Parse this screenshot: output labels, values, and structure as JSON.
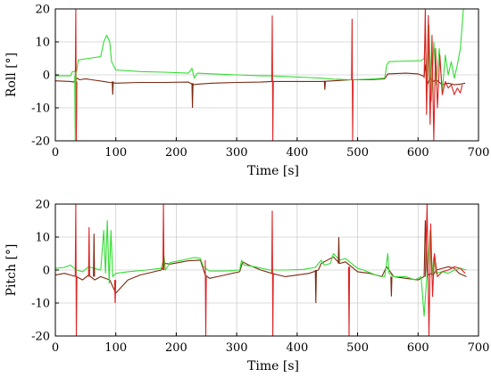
{
  "chart_data": [
    {
      "type": "line",
      "id": "roll",
      "xlabel": "Time [s]",
      "ylabel": "Roll [°]",
      "xlim": [
        0,
        700
      ],
      "ylim": [
        -20,
        20
      ],
      "xticks": [
        "0",
        "100",
        "200",
        "300",
        "400",
        "500",
        "600",
        "700"
      ],
      "yticks": [
        "20",
        "10",
        "0",
        "-10",
        "-20"
      ],
      "grid": true,
      "colors": {
        "green": "#33dd33",
        "dark": "#7a2a10",
        "red": "#dd2222"
      },
      "series": [
        {
          "color": "green",
          "points": [
            [
              0,
              -0.3
            ],
            [
              25,
              -0.3
            ],
            [
              28,
              1
            ],
            [
              35,
              1
            ],
            [
              38,
              4.5
            ],
            [
              55,
              5
            ],
            [
              75,
              5.5
            ],
            [
              80,
              10
            ],
            [
              85,
              12
            ],
            [
              90,
              10
            ],
            [
              93,
              4
            ],
            [
              100,
              1.5
            ],
            [
              140,
              1
            ],
            [
              180,
              0.8
            ],
            [
              220,
              0.5
            ],
            [
              226,
              2
            ],
            [
              230,
              -1
            ],
            [
              235,
              0.5
            ],
            [
              260,
              0.3
            ],
            [
              300,
              0
            ],
            [
              340,
              -0.3
            ],
            [
              355,
              -0.3
            ],
            [
              380,
              -0.5
            ],
            [
              420,
              -0.8
            ],
            [
              440,
              -1
            ],
            [
              460,
              -1.3
            ],
            [
              490,
              -1.5
            ],
            [
              520,
              -1.3
            ],
            [
              545,
              -1
            ],
            [
              548,
              3
            ],
            [
              552,
              4
            ],
            [
              580,
              4.2
            ],
            [
              605,
              4.3
            ],
            [
              610,
              5
            ],
            [
              612,
              12
            ],
            [
              615,
              -5
            ],
            [
              618,
              15
            ],
            [
              622,
              -8
            ],
            [
              626,
              10
            ],
            [
              630,
              -3
            ],
            [
              635,
              8
            ],
            [
              640,
              -5
            ],
            [
              645,
              6
            ],
            [
              650,
              0
            ],
            [
              655,
              4
            ],
            [
              660,
              -1
            ],
            [
              665,
              3
            ],
            [
              670,
              8
            ],
            [
              675,
              20
            ]
          ]
        },
        {
          "color": "dark",
          "points": [
            [
              0,
              -1.8
            ],
            [
              25,
              -2
            ],
            [
              30,
              -2.2
            ],
            [
              36,
              -1
            ],
            [
              40,
              -1.5
            ],
            [
              50,
              -1.2
            ],
            [
              60,
              -1.5
            ],
            [
              80,
              -2
            ],
            [
              90,
              -2.3
            ],
            [
              100,
              -2.5
            ],
            [
              140,
              -2.3
            ],
            [
              180,
              -2.3
            ],
            [
              220,
              -2.2
            ],
            [
              228,
              -3
            ],
            [
              235,
              -2.8
            ],
            [
              260,
              -2.5
            ],
            [
              300,
              -2.3
            ],
            [
              340,
              -2.2
            ],
            [
              358,
              -2
            ],
            [
              380,
              -2
            ],
            [
              420,
              -2
            ],
            [
              440,
              -2
            ],
            [
              460,
              -1.8
            ],
            [
              490,
              -1.5
            ],
            [
              520,
              -1.5
            ],
            [
              545,
              -1.2
            ],
            [
              550,
              0.3
            ],
            [
              580,
              0.5
            ],
            [
              600,
              0.3
            ],
            [
              610,
              -0.5
            ],
            [
              612,
              3
            ],
            [
              615,
              -3
            ],
            [
              620,
              -1
            ],
            [
              625,
              -2
            ],
            [
              630,
              -1.5
            ],
            [
              640,
              -3
            ],
            [
              650,
              -2.5
            ],
            [
              660,
              -3
            ],
            [
              670,
              -2.8
            ],
            [
              678,
              -2.5
            ]
          ]
        },
        {
          "color": "red",
          "points": [
            [
              610,
              -1
            ],
            [
              612,
              20
            ],
            [
              614,
              -12
            ],
            [
              617,
              18
            ],
            [
              620,
              -15
            ],
            [
              623,
              12
            ],
            [
              626,
              -20
            ],
            [
              629,
              8
            ],
            [
              632,
              -10
            ],
            [
              636,
              6
            ],
            [
              640,
              -6
            ],
            [
              645,
              -2
            ],
            [
              650,
              -4
            ],
            [
              655,
              -3
            ],
            [
              660,
              -6
            ],
            [
              665,
              -4
            ],
            [
              670,
              -5.5
            ],
            [
              673,
              -3
            ]
          ]
        }
      ],
      "spikes": [
        {
          "color": "red",
          "x": 33,
          "values": [
            -3,
            20,
            -20,
            -2
          ]
        },
        {
          "color": "green",
          "x": 32,
          "values": [
            -0.3,
            -20,
            1
          ]
        },
        {
          "color": "dark",
          "x": 94,
          "values": [
            -2,
            -6,
            -2
          ]
        },
        {
          "color": "dark",
          "x": 226,
          "values": [
            -2.5,
            -10,
            -2.5
          ]
        },
        {
          "color": "red",
          "x": 358,
          "values": [
            -2,
            18,
            -20,
            -2
          ]
        },
        {
          "color": "dark",
          "x": 445,
          "values": [
            -2,
            -4.5,
            -2
          ]
        },
        {
          "color": "red",
          "x": 490,
          "values": [
            -1.5,
            17,
            -20,
            -1.5
          ]
        }
      ]
    },
    {
      "type": "line",
      "id": "pitch",
      "xlabel": "Time [s]",
      "ylabel": "Pitch [°]",
      "xlim": [
        0,
        700
      ],
      "ylim": [
        -20,
        20
      ],
      "xticks": [
        "0",
        "100",
        "200",
        "300",
        "400",
        "500",
        "600",
        "700"
      ],
      "yticks": [
        "20",
        "10",
        "0",
        "-10",
        "-20"
      ],
      "grid": true,
      "colors": {
        "green": "#33dd33",
        "dark": "#7a2a10",
        "red": "#dd2222"
      },
      "series": [
        {
          "color": "green",
          "points": [
            [
              0,
              0.5
            ],
            [
              15,
              0.8
            ],
            [
              25,
              1.5
            ],
            [
              35,
              0
            ],
            [
              45,
              -0.5
            ],
            [
              55,
              1
            ],
            [
              65,
              0.5
            ],
            [
              75,
              0
            ],
            [
              80,
              12
            ],
            [
              83,
              -1
            ],
            [
              86,
              15
            ],
            [
              89,
              -4
            ],
            [
              92,
              12
            ],
            [
              95,
              -2
            ],
            [
              100,
              -1
            ],
            [
              120,
              -0.5
            ],
            [
              150,
              0
            ],
            [
              175,
              0.5
            ],
            [
              180,
              4
            ],
            [
              182,
              0
            ],
            [
              190,
              2.3
            ],
            [
              210,
              3
            ],
            [
              230,
              3.8
            ],
            [
              240,
              3.5
            ],
            [
              245,
              1
            ],
            [
              255,
              -0.3
            ],
            [
              280,
              -0.3
            ],
            [
              305,
              0
            ],
            [
              308,
              3
            ],
            [
              312,
              1.5
            ],
            [
              330,
              1
            ],
            [
              355,
              0
            ],
            [
              380,
              0
            ],
            [
              410,
              0.2
            ],
            [
              430,
              0.8
            ],
            [
              440,
              3
            ],
            [
              445,
              1.5
            ],
            [
              455,
              2
            ],
            [
              460,
              5
            ],
            [
              470,
              3
            ],
            [
              480,
              3.5
            ],
            [
              490,
              2
            ],
            [
              500,
              0.5
            ],
            [
              510,
              0
            ],
            [
              530,
              -1.5
            ],
            [
              545,
              -2
            ],
            [
              550,
              5
            ],
            [
              552,
              -1
            ],
            [
              560,
              -2
            ],
            [
              580,
              -2
            ],
            [
              595,
              -3
            ],
            [
              605,
              -2
            ],
            [
              610,
              -14
            ],
            [
              614,
              -3
            ],
            [
              617,
              2
            ],
            [
              620,
              12
            ],
            [
              623,
              -2
            ],
            [
              626,
              4
            ],
            [
              630,
              -1
            ],
            [
              640,
              -0.5
            ],
            [
              650,
              -1
            ],
            [
              660,
              0
            ],
            [
              670,
              0.5
            ],
            [
              680,
              0
            ]
          ]
        },
        {
          "color": "dark",
          "points": [
            [
              0,
              -1.5
            ],
            [
              15,
              -1
            ],
            [
              25,
              -1.5
            ],
            [
              35,
              -2
            ],
            [
              45,
              -3
            ],
            [
              55,
              -1.5
            ],
            [
              65,
              -3
            ],
            [
              75,
              -2
            ],
            [
              90,
              -3
            ],
            [
              100,
              -7
            ],
            [
              110,
              -5
            ],
            [
              120,
              -3
            ],
            [
              140,
              -1.5
            ],
            [
              175,
              0
            ],
            [
              182,
              2
            ],
            [
              190,
              1.8
            ],
            [
              220,
              2.8
            ],
            [
              240,
              3
            ],
            [
              248,
              -1.5
            ],
            [
              255,
              -2.5
            ],
            [
              280,
              -1.5
            ],
            [
              305,
              -0.5
            ],
            [
              310,
              2.5
            ],
            [
              320,
              1.5
            ],
            [
              340,
              0
            ],
            [
              358,
              -1
            ],
            [
              380,
              -2
            ],
            [
              420,
              -1
            ],
            [
              435,
              0
            ],
            [
              440,
              2
            ],
            [
              460,
              4
            ],
            [
              470,
              2
            ],
            [
              480,
              2.5
            ],
            [
              490,
              1
            ],
            [
              500,
              -0.5
            ],
            [
              520,
              -1
            ],
            [
              540,
              -2
            ],
            [
              548,
              1
            ],
            [
              560,
              -2
            ],
            [
              580,
              -2.5
            ],
            [
              600,
              -3
            ],
            [
              610,
              -2
            ],
            [
              612,
              15
            ],
            [
              615,
              -2
            ],
            [
              620,
              -1
            ],
            [
              625,
              -1.5
            ],
            [
              630,
              0
            ],
            [
              640,
              0.5
            ],
            [
              650,
              1
            ],
            [
              660,
              0.5
            ],
            [
              668,
              -1
            ],
            [
              680,
              -2
            ]
          ]
        },
        {
          "color": "red",
          "points": [
            [
              612,
              -2
            ],
            [
              615,
              20
            ],
            [
              618,
              -20
            ],
            [
              621,
              14
            ],
            [
              624,
              -8
            ],
            [
              627,
              5
            ],
            [
              632,
              -2
            ],
            [
              640,
              -0.5
            ],
            [
              650,
              0
            ],
            [
              660,
              1
            ],
            [
              670,
              0.5
            ],
            [
              678,
              -1
            ]
          ]
        }
      ],
      "spikes": [
        {
          "color": "red",
          "x": 33,
          "values": [
            -2,
            20,
            -20,
            -2
          ]
        },
        {
          "color": "red",
          "x": 55,
          "values": [
            -2,
            13,
            -2
          ]
        },
        {
          "color": "dark",
          "x": 63,
          "values": [
            -2,
            11,
            -2
          ]
        },
        {
          "color": "red",
          "x": 98,
          "values": [
            -3,
            -10,
            -3
          ]
        },
        {
          "color": "red",
          "x": 178,
          "values": [
            0,
            20,
            0
          ]
        },
        {
          "color": "red",
          "x": 248,
          "values": [
            3,
            -20,
            -2
          ]
        },
        {
          "color": "red",
          "x": 358,
          "values": [
            -1,
            18,
            -20,
            -1
          ]
        },
        {
          "color": "dark",
          "x": 430,
          "values": [
            0,
            -10,
            0
          ]
        },
        {
          "color": "dark",
          "x": 468,
          "values": [
            2,
            10,
            2
          ]
        },
        {
          "color": "red",
          "x": 485,
          "values": [
            1,
            -20,
            1
          ]
        },
        {
          "color": "dark",
          "x": 555,
          "values": [
            -2,
            -8,
            -2
          ]
        }
      ]
    }
  ]
}
